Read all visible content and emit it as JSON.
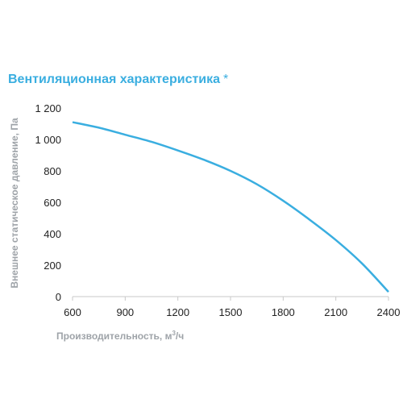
{
  "title": "Вентиляционная характеристика",
  "title_note": "*",
  "colors": {
    "title": "#3aaee0",
    "curve": "#3aaee0",
    "axis_text": "#9ea3a8",
    "tick_text": "#222222",
    "grid": "#c8c8c8"
  },
  "chart_data": {
    "type": "line",
    "title": "Вентиляционная характеристика *",
    "xlabel": "Производительность, м³/ч",
    "xlabel_main": "Производительность, м",
    "xlabel_sup": "3",
    "xlabel_tail": "/ч",
    "ylabel": "Внешнее статическое давление, Па",
    "xlim": [
      600,
      2400
    ],
    "ylim": [
      0,
      1200
    ],
    "x_ticks": [
      600,
      900,
      1200,
      1500,
      1800,
      2100,
      2400
    ],
    "x_tick_labels": [
      "600",
      "900",
      "1200",
      "1500",
      "1800",
      "2100",
      "2400"
    ],
    "y_ticks": [
      0,
      200,
      400,
      600,
      800,
      1000,
      1200
    ],
    "y_tick_labels": [
      "0",
      "200",
      "400",
      "600",
      "800",
      "1 000",
      "1 200"
    ],
    "grid": false,
    "series": [
      {
        "x": [
          600,
          750,
          900,
          1050,
          1200,
          1350,
          1500,
          1650,
          1800,
          1950,
          2100,
          2250,
          2400
        ],
        "y": [
          1110,
          1075,
          1030,
          985,
          930,
          870,
          800,
          715,
          610,
          490,
          360,
          210,
          30
        ]
      }
    ]
  }
}
